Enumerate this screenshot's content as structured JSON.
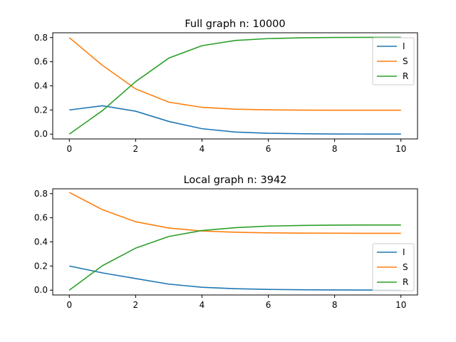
{
  "chart_data": [
    {
      "type": "line",
      "title": "Full graph n: 10000",
      "xlabel": "",
      "ylabel": "",
      "x": [
        0,
        1,
        2,
        3,
        4,
        5,
        6,
        7,
        8,
        9,
        10
      ],
      "xlim": [
        -0.5,
        10.5
      ],
      "ylim": [
        -0.04,
        0.84
      ],
      "xticks": [
        0,
        2,
        4,
        6,
        8,
        10
      ],
      "yticks": [
        0.0,
        0.2,
        0.4,
        0.6,
        0.8
      ],
      "xtick_labels": [
        "0",
        "2",
        "4",
        "6",
        "8",
        "10"
      ],
      "ytick_labels": [
        "0.0",
        "0.2",
        "0.4",
        "0.6",
        "0.8"
      ],
      "grid": false,
      "legend_position": "top-right",
      "series": [
        {
          "name": "I",
          "color": "#1f77b4",
          "values": [
            0.2,
            0.235,
            0.19,
            0.105,
            0.045,
            0.017,
            0.007,
            0.003,
            0.001,
            0.0005,
            0.0002
          ]
        },
        {
          "name": "S",
          "color": "#ff7f0e",
          "values": [
            0.8,
            0.57,
            0.375,
            0.265,
            0.222,
            0.207,
            0.201,
            0.199,
            0.198,
            0.198,
            0.198
          ]
        },
        {
          "name": "R",
          "color": "#2ca02c",
          "values": [
            0.0,
            0.195,
            0.435,
            0.63,
            0.733,
            0.776,
            0.792,
            0.798,
            0.801,
            0.802,
            0.802
          ]
        }
      ]
    },
    {
      "type": "line",
      "title": "Local graph n: 3942",
      "xlabel": "",
      "ylabel": "",
      "x": [
        0,
        1,
        2,
        3,
        4,
        5,
        6,
        7,
        8,
        9,
        10
      ],
      "xlim": [
        -0.5,
        10.5
      ],
      "ylim": [
        -0.04,
        0.84
      ],
      "xticks": [
        0,
        2,
        4,
        6,
        8,
        10
      ],
      "yticks": [
        0.0,
        0.2,
        0.4,
        0.6,
        0.8
      ],
      "xtick_labels": [
        "0",
        "2",
        "4",
        "6",
        "8",
        "10"
      ],
      "ytick_labels": [
        "0.0",
        "0.2",
        "0.4",
        "0.6",
        "0.8"
      ],
      "grid": false,
      "legend_position": "center-right",
      "series": [
        {
          "name": "I",
          "color": "#1f77b4",
          "values": [
            0.2,
            0.143,
            0.096,
            0.05,
            0.024,
            0.012,
            0.006,
            0.003,
            0.002,
            0.001,
            0.0005
          ]
        },
        {
          "name": "S",
          "color": "#ff7f0e",
          "values": [
            0.81,
            0.667,
            0.567,
            0.515,
            0.49,
            0.48,
            0.475,
            0.473,
            0.472,
            0.471,
            0.471
          ]
        },
        {
          "name": "R",
          "color": "#2ca02c",
          "values": [
            0.0,
            0.203,
            0.348,
            0.445,
            0.494,
            0.518,
            0.531,
            0.536,
            0.539,
            0.54,
            0.54
          ]
        }
      ]
    }
  ]
}
